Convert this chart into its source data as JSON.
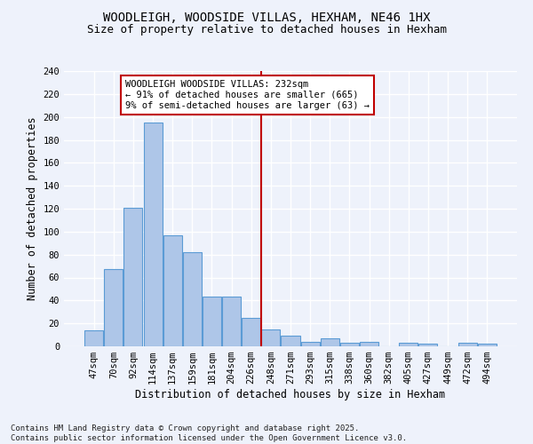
{
  "title": "WOODLEIGH, WOODSIDE VILLAS, HEXHAM, NE46 1HX",
  "subtitle": "Size of property relative to detached houses in Hexham",
  "xlabel": "Distribution of detached houses by size in Hexham",
  "ylabel": "Number of detached properties",
  "categories": [
    "47sqm",
    "70sqm",
    "92sqm",
    "114sqm",
    "137sqm",
    "159sqm",
    "181sqm",
    "204sqm",
    "226sqm",
    "248sqm",
    "271sqm",
    "293sqm",
    "315sqm",
    "338sqm",
    "360sqm",
    "382sqm",
    "405sqm",
    "427sqm",
    "449sqm",
    "472sqm",
    "494sqm"
  ],
  "values": [
    14,
    67,
    121,
    195,
    97,
    82,
    43,
    43,
    25,
    15,
    9,
    4,
    7,
    3,
    4,
    0,
    3,
    2,
    0,
    3,
    2
  ],
  "bar_color": "#aec6e8",
  "bar_edge_color": "#5b9bd5",
  "property_line_x": 8.5,
  "annotation_text": "WOODLEIGH WOODSIDE VILLAS: 232sqm\n← 91% of detached houses are smaller (665)\n9% of semi-detached houses are larger (63) →",
  "annotation_box_color": "#ffffff",
  "annotation_box_edge_color": "#c00000",
  "vline_color": "#c00000",
  "ylim": [
    0,
    240
  ],
  "yticks": [
    0,
    20,
    40,
    60,
    80,
    100,
    120,
    140,
    160,
    180,
    200,
    220,
    240
  ],
  "footer": "Contains HM Land Registry data © Crown copyright and database right 2025.\nContains public sector information licensed under the Open Government Licence v3.0.",
  "background_color": "#eef2fb",
  "grid_color": "#ffffff",
  "title_fontsize": 10,
  "subtitle_fontsize": 9,
  "label_fontsize": 8.5,
  "tick_fontsize": 7.5,
  "annot_fontsize": 7.5,
  "footer_fontsize": 6.5
}
